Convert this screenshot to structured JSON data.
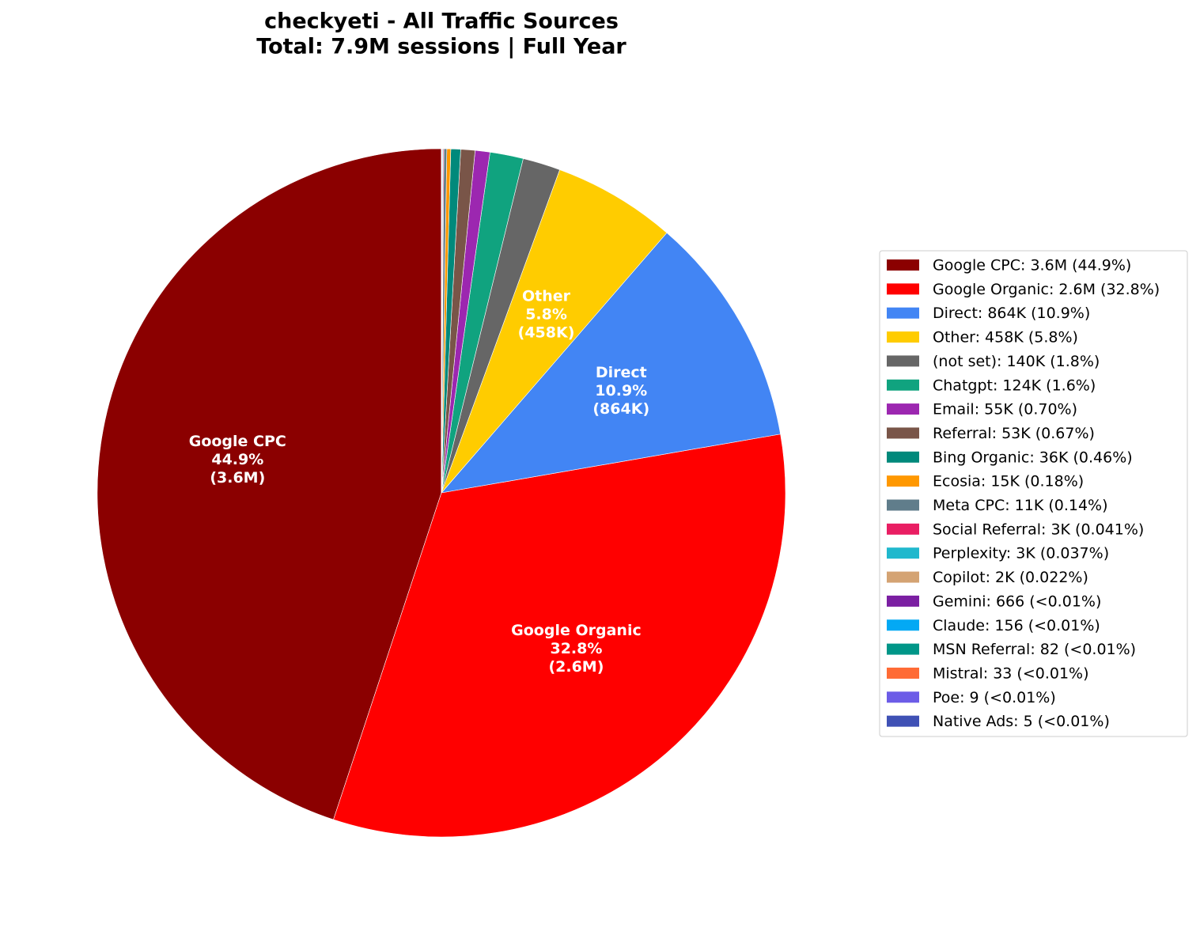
{
  "chart_data": {
    "type": "pie",
    "title": [
      "checkyeti - All Traffic Sources",
      "Total: 7.9M sessions | Full Year"
    ],
    "categories": [
      "Google CPC",
      "Google Organic",
      "Direct",
      "Other",
      "(not set)",
      "Chatgpt",
      "Email",
      "Referral",
      "Bing Organic",
      "Ecosia",
      "Meta CPC",
      "Social Referral",
      "Perplexity",
      "Copilot",
      "Gemini",
      "Claude",
      "MSN Referral",
      "Mistral",
      "Poe",
      "Native Ads"
    ],
    "values": [
      3560000,
      2600000,
      864000,
      458000,
      140000,
      124000,
      55000,
      53000,
      36400,
      14600,
      11000,
      3250,
      2900,
      1750,
      666,
      156,
      82,
      33,
      9,
      5
    ],
    "colors": [
      "#8b0000",
      "#ff0000",
      "#4285f4",
      "#ffcc00",
      "#666666",
      "#10a37f",
      "#9c27b0",
      "#795548",
      "#00897b",
      "#ff9800",
      "#607d8b",
      "#e91e63",
      "#20b8cd",
      "#d4a373",
      "#7b1fa2",
      "#03a9f4",
      "#009688",
      "#ff6b35",
      "#6c5ce7",
      "#3f51b5"
    ],
    "legend_labels": [
      "Google CPC: 3.6M (44.9%)",
      "Google Organic: 2.6M (32.8%)",
      "Direct: 864K (10.9%)",
      "Other: 458K (5.8%)",
      "(not set): 140K (1.8%)",
      "Chatgpt: 124K (1.6%)",
      "Email: 55K (0.70%)",
      "Referral: 53K (0.67%)",
      "Bing Organic: 36K (0.46%)",
      "Ecosia: 15K (0.18%)",
      "Meta CPC: 11K (0.14%)",
      "Social Referral: 3K (0.041%)",
      "Perplexity: 3K (0.037%)",
      "Copilot: 2K (0.022%)",
      "Gemini: 666 (<0.01%)",
      "Claude: 156 (<0.01%)",
      "MSN Referral: 82 (<0.01%)",
      "Mistral: 33 (<0.01%)",
      "Poe: 9 (<0.01%)",
      "Native Ads: 5 (<0.01%)"
    ],
    "slice_labels": [
      [
        "Google CPC",
        "44.9%",
        "(3.6M)"
      ],
      [
        "Google Organic",
        "32.8%",
        "(2.6M)"
      ],
      [
        "Direct",
        "10.9%",
        "(864K)"
      ],
      [
        "Other",
        "5.8%",
        "(458K)"
      ],
      null,
      null,
      null,
      null,
      null,
      null,
      null,
      null,
      null,
      null,
      null,
      null,
      null,
      null,
      null,
      null
    ],
    "start_angle": 90,
    "legend": "right"
  }
}
